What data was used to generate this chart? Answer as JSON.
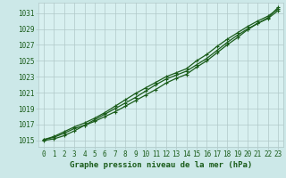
{
  "title": "Graphe pression niveau de la mer (hPa)",
  "background_color": "#cce8e8",
  "plot_bg_color": "#d8f0f0",
  "grid_color": "#b0c8c8",
  "line_color": "#1a5c1a",
  "marker_color": "#1a5c1a",
  "xlim": [
    -0.5,
    23.5
  ],
  "ylim": [
    1014.2,
    1032.3
  ],
  "yticks": [
    1015,
    1017,
    1019,
    1021,
    1023,
    1025,
    1027,
    1029,
    1031
  ],
  "xticks": [
    0,
    1,
    2,
    3,
    4,
    5,
    6,
    7,
    8,
    9,
    10,
    11,
    12,
    13,
    14,
    15,
    16,
    17,
    18,
    19,
    20,
    21,
    22,
    23
  ],
  "series1": [
    1015.1,
    1015.4,
    1015.9,
    1016.5,
    1016.9,
    1017.4,
    1018.0,
    1018.6,
    1019.3,
    1020.0,
    1020.7,
    1021.4,
    1022.2,
    1022.8,
    1023.3,
    1024.2,
    1025.0,
    1026.0,
    1027.0,
    1027.9,
    1028.9,
    1029.7,
    1030.4,
    1031.7
  ],
  "series2": [
    1015.1,
    1015.5,
    1016.1,
    1016.7,
    1017.2,
    1017.8,
    1018.5,
    1019.3,
    1020.1,
    1020.9,
    1021.6,
    1022.3,
    1023.0,
    1023.5,
    1024.0,
    1025.0,
    1025.8,
    1026.8,
    1027.7,
    1028.5,
    1029.3,
    1030.0,
    1030.6,
    1031.5
  ],
  "series3": [
    1015.0,
    1015.2,
    1015.6,
    1016.2,
    1016.9,
    1017.6,
    1018.3,
    1019.0,
    1019.7,
    1020.4,
    1021.2,
    1022.0,
    1022.7,
    1023.2,
    1023.7,
    1024.5,
    1025.3,
    1026.3,
    1027.3,
    1028.2,
    1029.0,
    1029.7,
    1030.3,
    1031.3
  ],
  "title_color": "#1a5c1a",
  "tick_color": "#1a5c1a",
  "tick_fontsize": 5.5,
  "label_fontsize": 6.5,
  "linewidth": 0.9,
  "markersize": 2.8
}
